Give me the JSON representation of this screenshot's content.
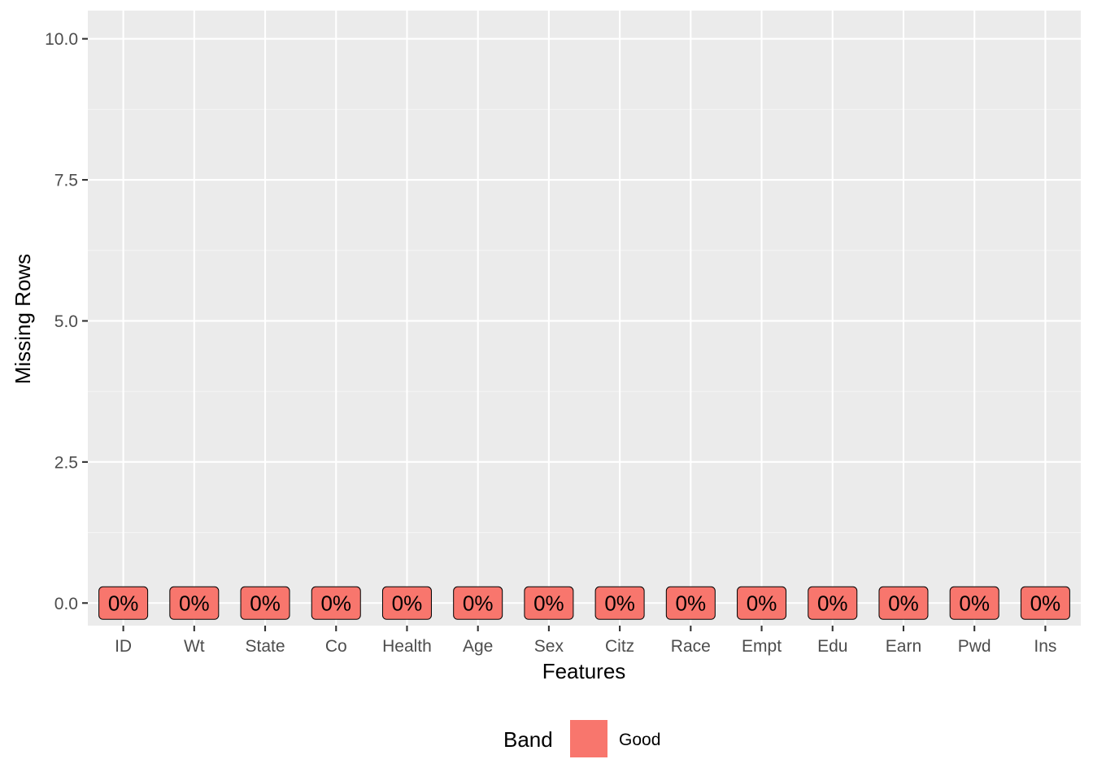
{
  "chart_data": {
    "type": "bar",
    "xlabel": "Features",
    "ylabel": "Missing Rows",
    "categories": [
      "ID",
      "Wt",
      "State",
      "Co",
      "Health",
      "Age",
      "Sex",
      "Citz",
      "Race",
      "Empt",
      "Edu",
      "Earn",
      "Pwd",
      "Ins"
    ],
    "values": [
      0,
      0,
      0,
      0,
      0,
      0,
      0,
      0,
      0,
      0,
      0,
      0,
      0,
      0
    ],
    "data_labels": [
      "0%",
      "0%",
      "0%",
      "0%",
      "0%",
      "0%",
      "0%",
      "0%",
      "0%",
      "0%",
      "0%",
      "0%",
      "0%",
      "0%"
    ],
    "series_band": [
      "Good",
      "Good",
      "Good",
      "Good",
      "Good",
      "Good",
      "Good",
      "Good",
      "Good",
      "Good",
      "Good",
      "Good",
      "Good",
      "Good"
    ],
    "y_ticks": [
      0,
      2.5,
      5,
      7.5,
      10
    ],
    "y_tick_labels": [
      "0.0",
      "2.5",
      "5.0",
      "7.5",
      "10.0"
    ],
    "ylim": [
      -0.4,
      10.5
    ],
    "grid": true,
    "legend": {
      "title": "Band",
      "position": "bottom",
      "entries": [
        {
          "label": "Good",
          "color": "#F8766D"
        }
      ]
    }
  },
  "colors": {
    "panel_background": "#EBEBEB",
    "grid_major": "#FFFFFF",
    "grid_minor": "#F5F5F5",
    "band_good": "#F8766D"
  }
}
